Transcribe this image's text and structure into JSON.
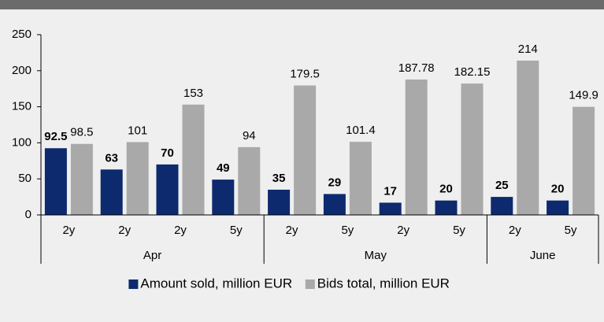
{
  "chart_data": {
    "type": "bar",
    "groups": [
      {
        "name": "Apr",
        "categories": [
          "2y",
          "2y",
          "2y",
          "5y"
        ]
      },
      {
        "name": "May",
        "categories": [
          "2y",
          "5y",
          "2y",
          "5y"
        ]
      },
      {
        "name": "June",
        "categories": [
          "2y",
          "5y"
        ]
      }
    ],
    "series": [
      {
        "name": "Amount sold, million EUR",
        "color": "#0d2a6e",
        "values": [
          92.5,
          63,
          70,
          49,
          35,
          29,
          17,
          20,
          25,
          20
        ]
      },
      {
        "name": "Bids total, million EUR",
        "color": "#a9a9a9",
        "values": [
          98.5,
          101,
          153,
          94,
          179.5,
          101.4,
          187.78,
          182.15,
          214,
          149.9
        ]
      }
    ],
    "ylim": [
      0,
      250
    ],
    "yticks": [
      0,
      50,
      100,
      150,
      200,
      250
    ],
    "legend": "bottom"
  }
}
